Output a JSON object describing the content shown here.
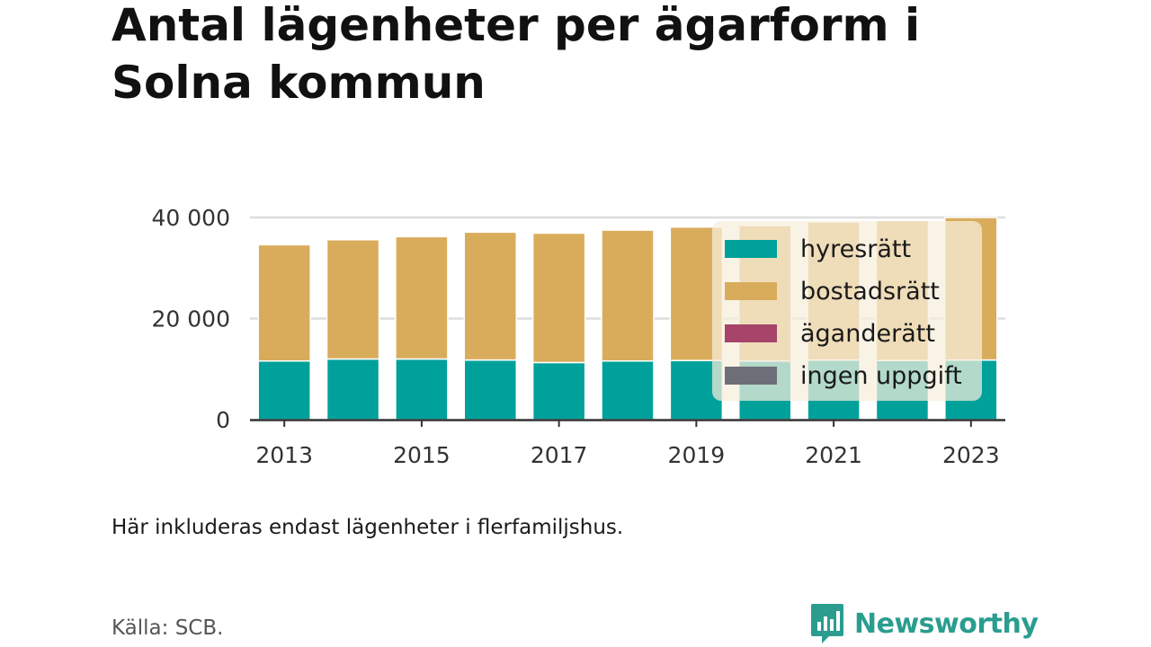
{
  "title": "Antal lägenheter per ägarform i Solna kommun",
  "note": "Här inkluderas endast lägenheter i flerfamiljshus.",
  "source": "Källa: SCB.",
  "brand": "Newsworthy",
  "colors": {
    "hyresratt": "#00a19a",
    "bostadsratt": "#d9ac5c",
    "aganderatt": "#a6446a",
    "ingen_uppgift": "#6e6e78",
    "legend_bg": "#f7eedd",
    "grid": "#dddddd",
    "axis": "#333333",
    "brand": "#2a9d8f"
  },
  "chart_data": {
    "type": "bar",
    "stacked": true,
    "categories": [
      "2013",
      "2014",
      "2015",
      "2016",
      "2017",
      "2018",
      "2019",
      "2020",
      "2021",
      "2022",
      "2023"
    ],
    "x_tick_labels": [
      "2013",
      "2015",
      "2017",
      "2019",
      "2021",
      "2023"
    ],
    "series": [
      {
        "name": "hyresrätt",
        "color": "#00a19a",
        "values": [
          11600,
          12000,
          12000,
          11800,
          11300,
          11600,
          11700,
          11600,
          11800,
          11700,
          11800
        ]
      },
      {
        "name": "bostadsrätt",
        "color": "#d9ac5c",
        "values": [
          23000,
          23600,
          24200,
          25300,
          25600,
          25900,
          26400,
          26800,
          27300,
          27700,
          28200
        ]
      },
      {
        "name": "äganderätt",
        "color": "#a6446a",
        "values": [
          0,
          0,
          0,
          0,
          0,
          0,
          0,
          0,
          0,
          0,
          0
        ]
      },
      {
        "name": "ingen uppgift",
        "color": "#6e6e78",
        "values": [
          0,
          0,
          0,
          0,
          0,
          0,
          0,
          0,
          0,
          0,
          0
        ]
      }
    ],
    "y_ticks": [
      0,
      20000,
      40000
    ],
    "y_tick_labels": [
      "0",
      "20 000",
      "40 000"
    ],
    "ylim": [
      0,
      40000
    ],
    "grid": true,
    "legend_position": "top-right inside"
  }
}
